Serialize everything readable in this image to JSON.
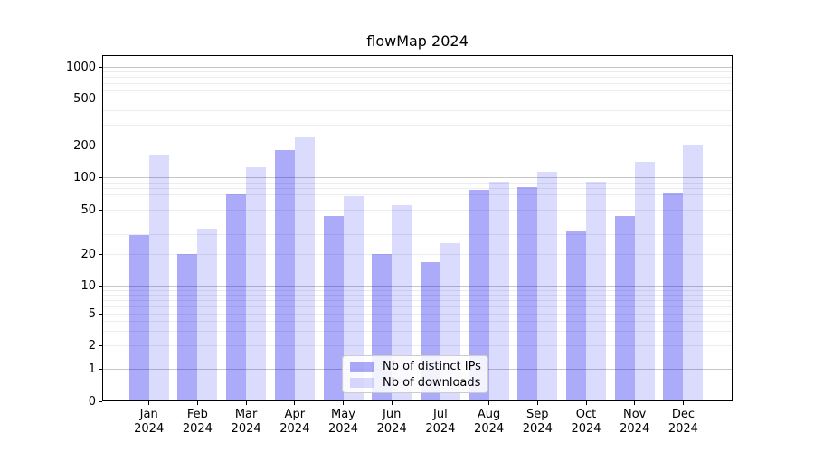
{
  "title": "flowMap 2024",
  "colors": {
    "ips_bar": "rgba(8,8,238,0.34)",
    "downloads_bar": "rgba(8,8,238,0.145)",
    "major_grid": "#c6c6c6",
    "minor_grid": "#ececec",
    "axis_line": "#000000",
    "legend_border": "#cccccc",
    "legend_background": "rgba(255,255,255,0.85)"
  },
  "chart_data": {
    "type": "bar",
    "title": "flowMap 2024",
    "categories": [
      "Jan",
      "Feb",
      "Mar",
      "Apr",
      "May",
      "Jun",
      "Jul",
      "Aug",
      "Sep",
      "Oct",
      "Nov",
      "Dec"
    ],
    "category_year": "2024",
    "series": [
      {
        "name": "Nb of distinct IPs",
        "color_key": "ips_bar",
        "values": [
          30,
          20,
          70,
          180,
          44,
          20,
          17,
          77,
          82,
          33,
          44,
          73
        ]
      },
      {
        "name": "Nb of downloads",
        "color_key": "downloads_bar",
        "values": [
          160,
          34,
          126,
          235,
          68,
          56,
          25,
          92,
          113,
          92,
          140,
          205
        ]
      }
    ],
    "y_axis": {
      "scale": "symlog-like",
      "tick_values": [
        0,
        1,
        2,
        5,
        10,
        20,
        50,
        100,
        200,
        500,
        1000
      ],
      "tick_positions": [
        0,
        0.0932,
        0.1611,
        0.2525,
        0.3324,
        0.4248,
        0.5517,
        0.6457,
        0.7389,
        0.8721,
        0.9653
      ],
      "major_gridlines": [
        1,
        10,
        100,
        1000
      ],
      "minor_gridlines": [
        2,
        3,
        4,
        5,
        6,
        7,
        8,
        9,
        20,
        30,
        40,
        50,
        60,
        70,
        80,
        90,
        200,
        300,
        400,
        500,
        600,
        700,
        800,
        900
      ]
    },
    "legend": {
      "position": "lower center inside",
      "entries": [
        "Nb of distinct IPs",
        "Nb of downloads"
      ]
    },
    "grid": true
  }
}
